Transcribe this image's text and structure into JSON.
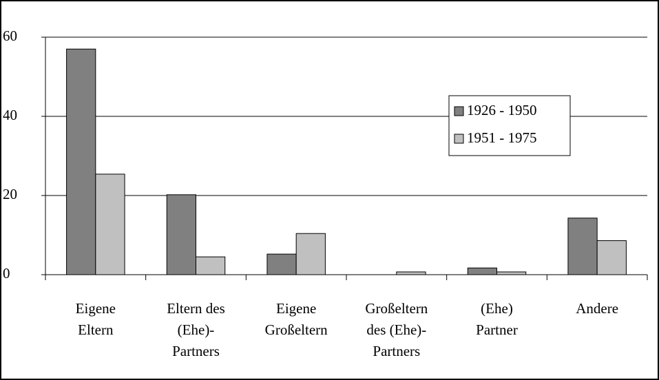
{
  "chart_data": {
    "type": "bar",
    "categories": [
      [
        "Eigene",
        "Eltern"
      ],
      [
        "Eltern des",
        "(Ehe)-",
        "Partners"
      ],
      [
        "Eigene",
        "Großeltern"
      ],
      [
        "Großeltern",
        "des (Ehe)-",
        "Partners"
      ],
      [
        "(Ehe)",
        "Partner"
      ],
      [
        "Andere"
      ]
    ],
    "series": [
      {
        "name": "1926 - 1950",
        "color": "#808080",
        "values": [
          57,
          20.2,
          5.2,
          0,
          1.7,
          14.3
        ]
      },
      {
        "name": "1951 - 1975",
        "color": "#c0c0c0",
        "values": [
          25.4,
          4.5,
          10.4,
          0.7,
          0.7,
          8.6
        ]
      }
    ],
    "ylim": [
      0,
      60
    ],
    "yticks": [
      0,
      20,
      40,
      60
    ],
    "grid": true,
    "legend": "right"
  }
}
